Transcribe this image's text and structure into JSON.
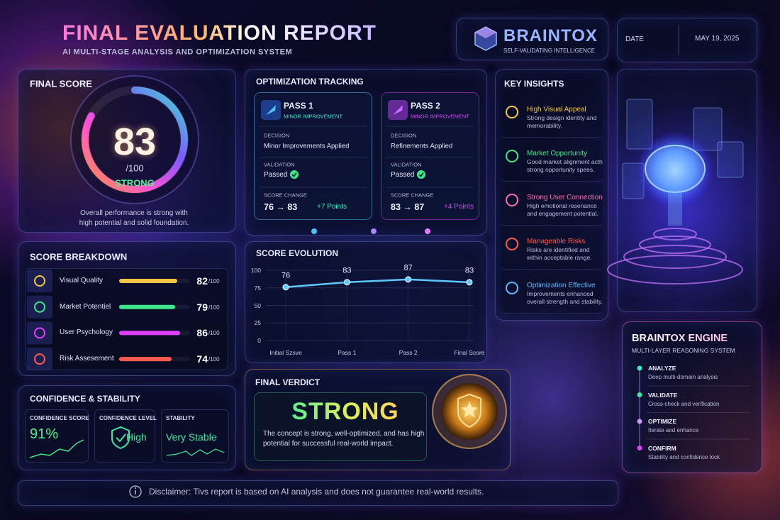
{
  "header": {
    "title": "FINAL EVALUATION REPORT",
    "subtitle": "AI MULTI-STAGE ANALYSIS AND OPTIMIZATION SYSTEM"
  },
  "brand": {
    "name": "BRAINTOX",
    "tagline": "SELF-VALIDATING INTELLIGENCE"
  },
  "date": {
    "label": "DATE",
    "value": "MAY 19, 2025"
  },
  "final_score": {
    "title": "FINAL SCORE",
    "score": 83,
    "max": {
      "value": 100,
      "label": "/100"
    },
    "rating": "STRONG",
    "description": "Overall performance is strong with high potential and solid foundation."
  },
  "score_breakdown": {
    "title": "SCORE BREAKDOWN",
    "max": {
      "value": 100,
      "label": "/100"
    },
    "items": [
      {
        "label": "Visual Quality",
        "score": 82,
        "color": "#f5c542"
      },
      {
        "label": "Market Potentiel",
        "score": 79,
        "color": "#3ee68a"
      },
      {
        "label": "User Psychology",
        "score": 86,
        "color": "#e040fb"
      },
      {
        "label": "Risk Assesement",
        "score": 74,
        "color": "#ff5a4e"
      }
    ]
  },
  "confidence": {
    "title": "CONFIDENCE & STABILITY",
    "cards": [
      {
        "label": "CONFIDENCE SCORE",
        "value": "91%"
      },
      {
        "label": "CONFIDENCE LEVEL",
        "value": "High"
      },
      {
        "label": "STABILITY",
        "value": "Very Stable"
      }
    ]
  },
  "optimization": {
    "title": "OPTIMIZATION TRACKING",
    "passes": [
      {
        "name": "PASS 1",
        "subtitle": "MINOR IMPROVEMENT",
        "decision_label": "DECISION",
        "decision": "Minor Improvements Applied",
        "validation_label": "VALIDATION",
        "validation": "Passed",
        "change_label": "SCORE CHANGE",
        "change": "76 → 83",
        "delta": "+7 Points"
      },
      {
        "name": "PASS 2",
        "subtitle": "MINOR IMPROVEMENT",
        "decision_label": "DECISION",
        "decision": "Refinements Applied",
        "validation_label": "VALIDATION",
        "validation": "Passed",
        "change_label": "SCDRE CHANGE",
        "change": "83 → 87",
        "delta": "+4 Points"
      }
    ]
  },
  "chart_data": {
    "type": "line",
    "title": "SCORE EVOLUTION",
    "categories": [
      "Initial Szsve",
      "Pass 1",
      "Pass 2",
      "Final Score"
    ],
    "values": [
      76,
      83,
      87,
      83
    ],
    "color": "#5fc8ff",
    "ylim": [
      0,
      100
    ],
    "yticks": [
      0,
      25,
      50,
      75,
      100
    ],
    "grid": true
  },
  "verdict": {
    "title": "FINAL VERDICT",
    "value": "STRONG",
    "text": "The concept is strong, well-optimized, and has high potential for successful real-world impact."
  },
  "insights": {
    "title": "KEY INSIGHTS",
    "items": [
      {
        "title": "High Visual Appeal",
        "text": "Strong design identity and memorability."
      },
      {
        "title": "Market Opportunity",
        "text": "Good market alignment acth strong opportunity spees."
      },
      {
        "title": "Strong User Connection",
        "text": "High emotional resenance and engagement potential."
      },
      {
        "title": "Manageable Risks",
        "text": "Risks are identified and within acceptable range."
      },
      {
        "title": "Optimization Effective",
        "text": "Improvements enhanced overall strength and stability."
      }
    ]
  },
  "engine": {
    "title": "BRAINTOX ENGINE",
    "subtitle": "MULTI-LAYER REASONING SYSTEM",
    "steps": [
      {
        "title": "ANALYZE",
        "text": "Deep multi-domain analysis"
      },
      {
        "title": "VALIDATE",
        "text": "Cross-check and verification"
      },
      {
        "title": "OPTIMIZE",
        "text": "Iterate and enhance"
      },
      {
        "title": "CONFIRM",
        "text": "Stability and confidence lock"
      }
    ]
  },
  "disclaimer": "Disclaimer: Tivs report is based on AI analysis and does not guarantee real-world results."
}
